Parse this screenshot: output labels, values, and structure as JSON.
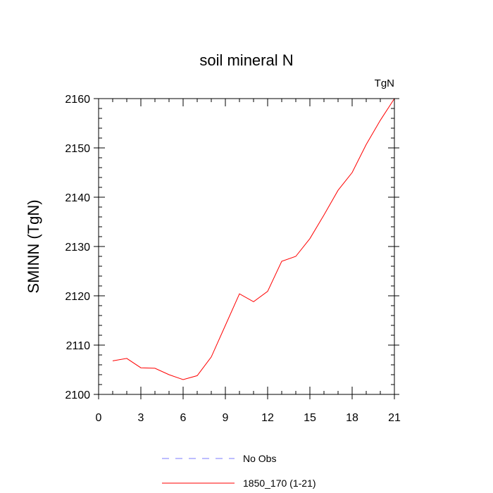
{
  "chart_data": {
    "type": "line",
    "title": "soil mineral N",
    "units_label": "TgN",
    "xlabel": "",
    "ylabel": "SMINN  (TgN)",
    "xlim": [
      0,
      21
    ],
    "ylim": [
      2100,
      2160
    ],
    "x_ticks": [
      0,
      3,
      6,
      9,
      12,
      15,
      18,
      21
    ],
    "y_ticks": [
      2100,
      2110,
      2120,
      2130,
      2140,
      2150,
      2160
    ],
    "grid": false,
    "legend_position": "bottom-center",
    "legend": [
      {
        "label": "No Obs",
        "color": "#7b7bff",
        "style": "dashed"
      },
      {
        "label": "1850_170 (1-21)",
        "color": "#ff0000",
        "style": "solid"
      }
    ],
    "series": [
      {
        "name": "1850_170 (1-21)",
        "color": "#ff0000",
        "x": [
          1,
          2,
          3,
          4,
          5,
          6,
          7,
          8,
          9,
          10,
          11,
          12,
          13,
          14,
          15,
          16,
          17,
          18,
          19,
          20,
          21
        ],
        "values": [
          2106.8,
          2107.3,
          2105.4,
          2105.3,
          2104.0,
          2103.0,
          2103.8,
          2107.6,
          2114.0,
          2120.4,
          2118.8,
          2120.9,
          2127.0,
          2128.0,
          2131.6,
          2136.4,
          2141.4,
          2145.0,
          2150.7,
          2155.6,
          2160.0
        ]
      }
    ]
  }
}
